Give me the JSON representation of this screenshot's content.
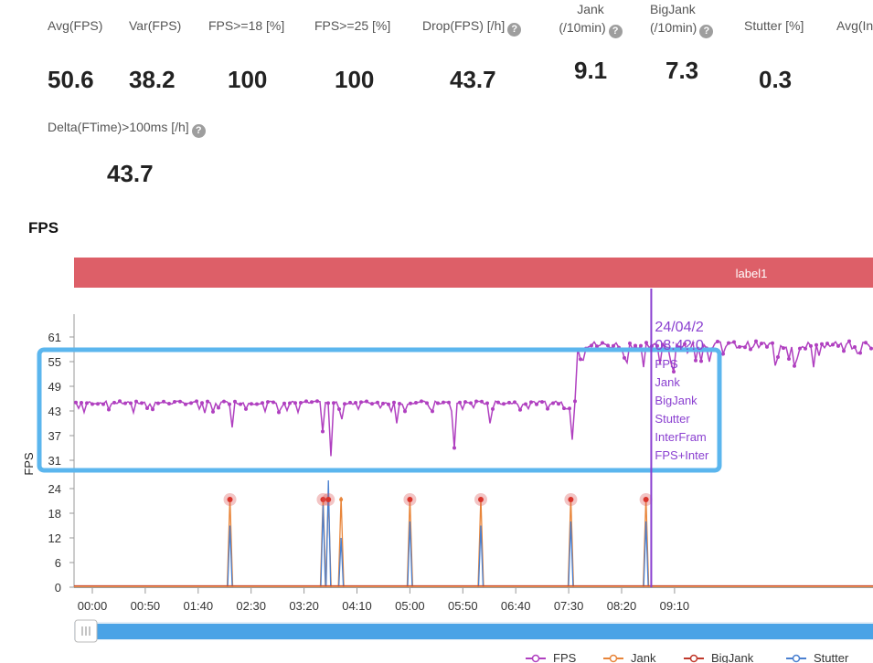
{
  "metrics": [
    {
      "label": "Avg(FPS)",
      "value": "50.6"
    },
    {
      "label": "Var(FPS)",
      "value": "38.2"
    },
    {
      "label": "FPS>=18 [%]",
      "value": "100"
    },
    {
      "label": "FPS>=25 [%]",
      "value": "100"
    },
    {
      "label": "Drop(FPS) [/h]",
      "value": "43.7"
    },
    {
      "label": "Jank (/10min)",
      "value": "9.1"
    },
    {
      "label": "BigJank (/10min)",
      "value": "7.3"
    },
    {
      "label": "Stutter [%]",
      "value": "0.3"
    },
    {
      "label": "Avg(In",
      "value": ""
    },
    {
      "label": "Delta(FTime)>100ms [/h]",
      "value": "43.7"
    }
  ],
  "help_glyph": "?",
  "chart_title": "FPS",
  "chart_data": {
    "type": "line",
    "ylabel": "FPS",
    "region_label": "label1",
    "x_ticks": [
      "00:00",
      "00:50",
      "01:40",
      "02:30",
      "03:20",
      "04:10",
      "05:00",
      "05:50",
      "06:40",
      "07:30",
      "08:20",
      "09:10"
    ],
    "fps_yticks": [
      31,
      37,
      43,
      49,
      55,
      61
    ],
    "fps_ylim": [
      28,
      65
    ],
    "jank_yticks": [
      0,
      6,
      12,
      18,
      24
    ],
    "jank_ylim": [
      0,
      27
    ],
    "series": [
      {
        "name": "FPS",
        "color": "#b040c0",
        "description_values": "baseline ~45 from 00:00 to 07:35, rises to ~59 from 07:40 onward"
      },
      {
        "name": "Jank",
        "color": "#e8853a"
      },
      {
        "name": "BigJank",
        "color": "#c0392b"
      },
      {
        "name": "Stutter",
        "color": "#4a80d0"
      }
    ],
    "fps_baseline_before": 45,
    "fps_baseline_after": 59,
    "fps_dips": [
      {
        "t": "02:11",
        "v": 39
      },
      {
        "t": "03:38",
        "v": 38
      },
      {
        "t": "03:45",
        "v": 32
      },
      {
        "t": "03:56",
        "v": 41
      },
      {
        "t": "04:48",
        "v": 40
      },
      {
        "t": "05:42",
        "v": 34
      },
      {
        "t": "06:15",
        "v": 40
      },
      {
        "t": "07:34",
        "v": 36
      }
    ],
    "spikes": [
      {
        "t": "02:10",
        "jank": 22,
        "stutter": 15,
        "marked": true
      },
      {
        "t": "03:38",
        "jank": 22,
        "stutter": 20,
        "marked": true
      },
      {
        "t": "03:43",
        "jank": 22,
        "stutter": 26,
        "marked": true
      },
      {
        "t": "03:55",
        "jank": 22,
        "stutter": 12,
        "marked": false
      },
      {
        "t": "05:00",
        "jank": 22,
        "stutter": 16,
        "marked": true
      },
      {
        "t": "06:07",
        "jank": 22,
        "stutter": 15,
        "marked": true
      },
      {
        "t": "07:32",
        "jank": 22,
        "stutter": 16,
        "marked": true
      },
      {
        "t": "08:43",
        "jank": 22,
        "stutter": 16,
        "marked": true
      }
    ],
    "cursor_time": "08:48",
    "tooltip_lines": [
      "24/04/2",
      "08:4?:0",
      "FPS",
      "Jank",
      "BigJank",
      "Stutter",
      "InterFram",
      "FPS+Inter"
    ]
  },
  "legend": [
    {
      "name": "FPS",
      "color": "#b040c0"
    },
    {
      "name": "Jank",
      "color": "#e8853a"
    },
    {
      "name": "BigJank",
      "color": "#c0392b"
    },
    {
      "name": "Stutter",
      "color": "#4a80d0"
    }
  ],
  "colors": {
    "region_band": "#dd5f68",
    "highlight_box": "#5bb6ee",
    "cursor_line": "#8a3fd0",
    "slider": "#4aa3e6"
  }
}
